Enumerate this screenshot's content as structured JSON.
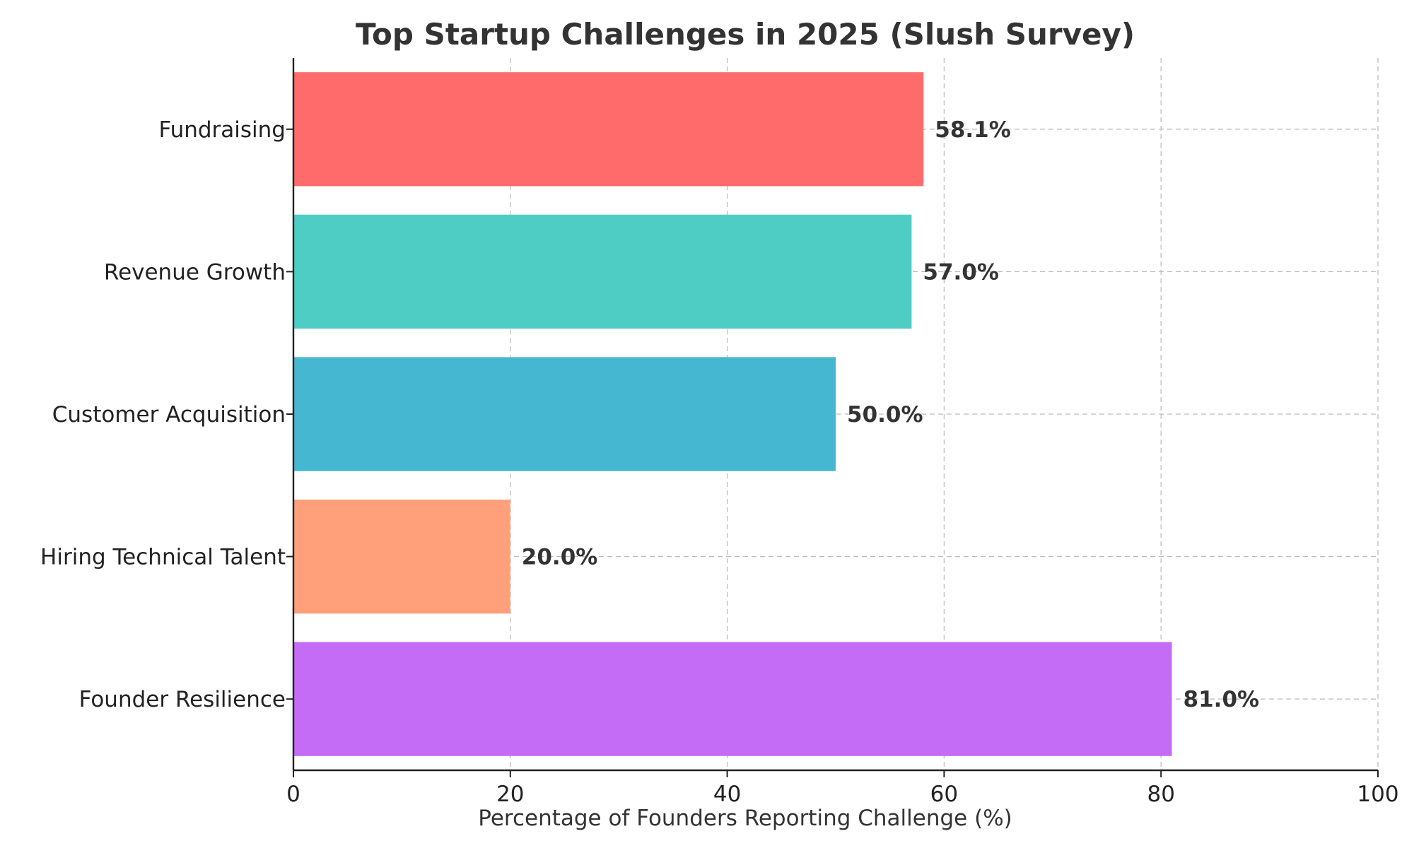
{
  "chart_data": {
    "type": "bar",
    "orientation": "horizontal",
    "title": "Top Startup Challenges in 2025 (Slush Survey)",
    "xlabel": "Percentage of Founders Reporting Challenge (%)",
    "ylabel": "",
    "categories": [
      "Fundraising",
      "Revenue Growth",
      "Customer Acquisition",
      "Hiring Technical Talent",
      "Founder Resilience"
    ],
    "values": [
      58.1,
      57.0,
      50.0,
      20.0,
      81.0
    ],
    "value_labels": [
      "58.1%",
      "57.0%",
      "50.0%",
      "20.0%",
      "81.0%"
    ],
    "colors": [
      "#ff6b6b",
      "#4ecdc4",
      "#45b7d1",
      "#ffa07a",
      "#c56cf6"
    ],
    "xlim": [
      0,
      100
    ],
    "xticks": [
      0,
      20,
      40,
      60,
      80,
      100
    ],
    "xtick_labels": [
      "0",
      "20",
      "40",
      "60",
      "80",
      "100"
    ],
    "grid": true,
    "legend": "none"
  }
}
